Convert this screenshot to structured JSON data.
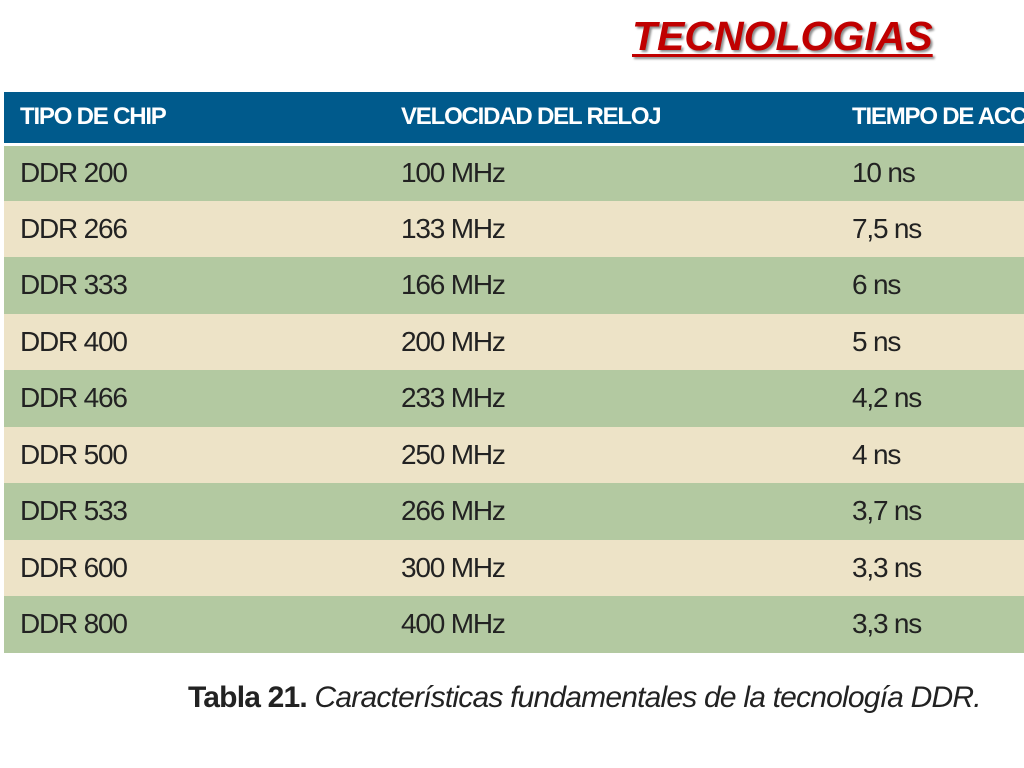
{
  "slide": {
    "title": "TECNOLOGIAS"
  },
  "table": {
    "headers": [
      "TIPO DE CHIP",
      "VELOCIDAD DEL RELOJ",
      "TIEMPO DE ACCESO"
    ],
    "rows": [
      [
        "DDR 200",
        "100 MHz",
        "10 ns"
      ],
      [
        "DDR 266",
        "133 MHz",
        "7,5 ns"
      ],
      [
        "DDR 333",
        "166 MHz",
        "6 ns"
      ],
      [
        "DDR 400",
        "200 MHz",
        "5 ns"
      ],
      [
        "DDR 466",
        "233 MHz",
        "4,2 ns"
      ],
      [
        "DDR 500",
        "250 MHz",
        "4 ns"
      ],
      [
        "DDR 533",
        "266 MHz",
        "3,7 ns"
      ],
      [
        "DDR 600",
        "300 MHz",
        "3,3 ns"
      ],
      [
        "DDR 800",
        "400 MHz",
        "3,3 ns"
      ]
    ],
    "colors": {
      "header_bg": "#005a8c",
      "row_green": "#b3c9a1",
      "row_beige": "#ede3c7",
      "title_red": "#c00000"
    }
  },
  "caption": {
    "label": "Tabla 21.",
    "text": " Características fundamentales de la tecnología DDR."
  }
}
